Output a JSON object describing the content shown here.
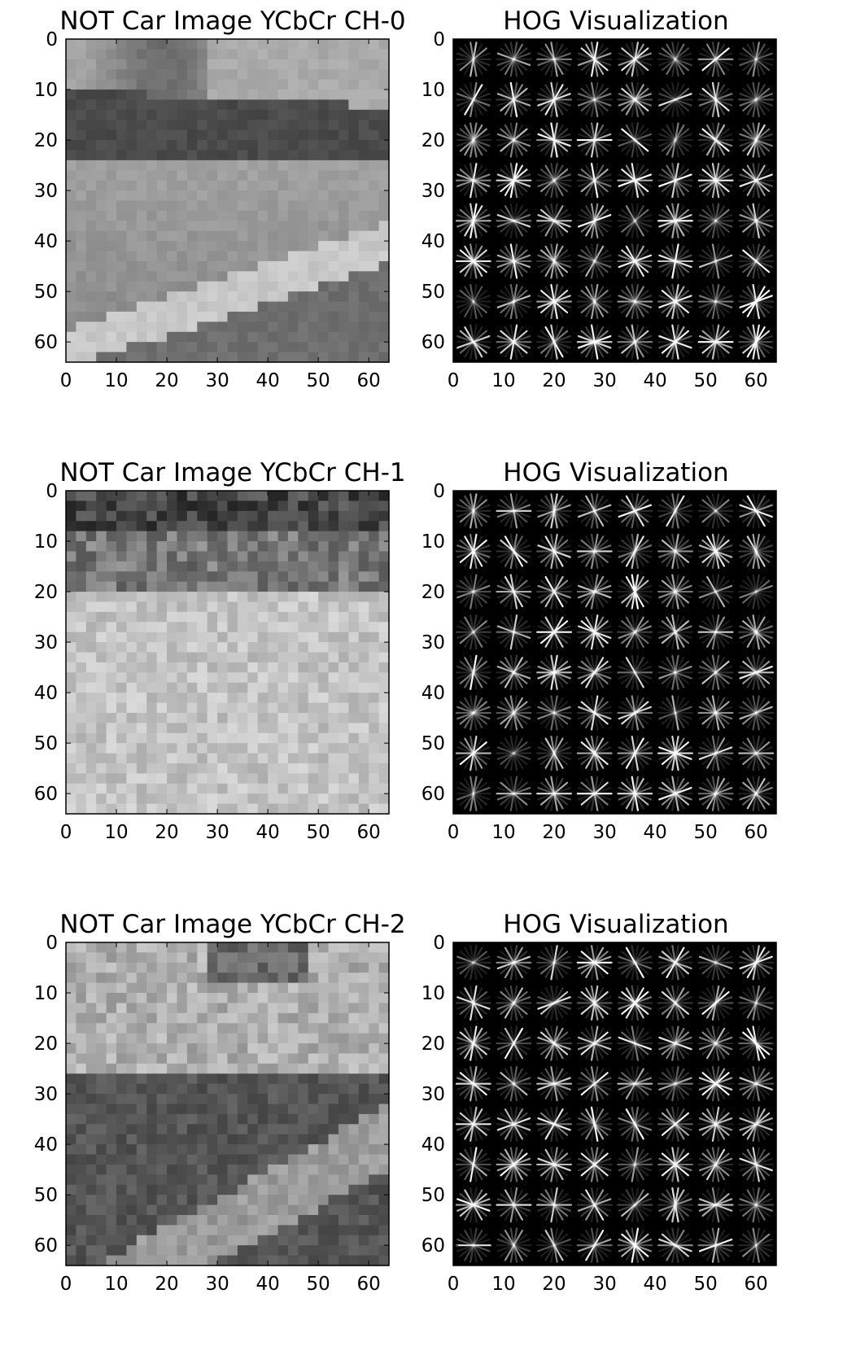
{
  "figure": {
    "panels": [
      {
        "id": "ch0-image",
        "kind": "image",
        "title": "NOT Car Image YCbCr CH-0",
        "scene": "barrier"
      },
      {
        "id": "ch0-hog",
        "kind": "hog",
        "title": "HOG Visualization",
        "seed": 11
      },
      {
        "id": "ch1-image",
        "kind": "image",
        "title": "NOT Car Image YCbCr CH-1",
        "scene": "texture"
      },
      {
        "id": "ch1-hog",
        "kind": "hog",
        "title": "HOG Visualization",
        "seed": 23
      },
      {
        "id": "ch2-image",
        "kind": "image",
        "title": "NOT Car Image YCbCr CH-2",
        "scene": "mottled"
      },
      {
        "id": "ch2-hog",
        "kind": "hog",
        "title": "HOG Visualization",
        "seed": 37
      }
    ],
    "axes": {
      "xlim": [
        0,
        64
      ],
      "ylim": [
        64,
        0
      ],
      "xticks": [
        0,
        10,
        20,
        30,
        40,
        50,
        60
      ],
      "yticks": [
        0,
        10,
        20,
        30,
        40,
        50,
        60
      ]
    },
    "colors": {
      "image_dark": "#303030",
      "image_light": "#e6e6e6",
      "hog_background": "#000000",
      "hog_stroke": "#ffffff"
    }
  }
}
